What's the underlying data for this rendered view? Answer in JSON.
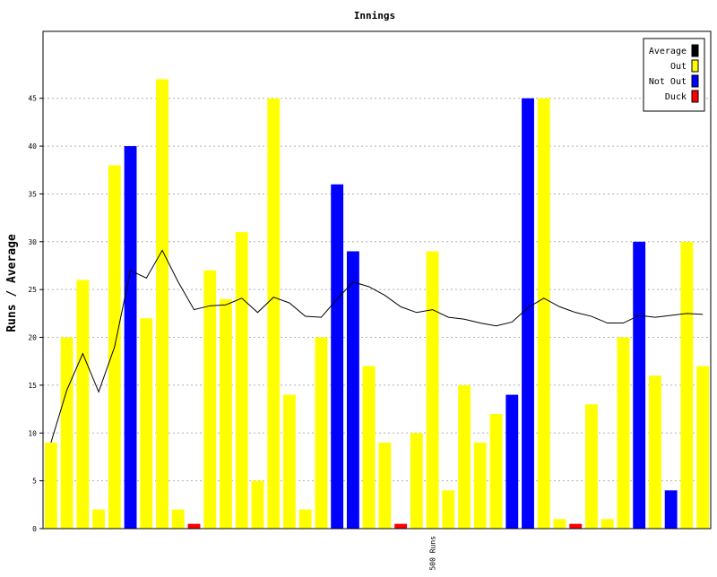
{
  "chart_data": {
    "type": "bar",
    "title": "Innings",
    "xlabel": "",
    "ylabel": "Runs / Average",
    "ylim": [
      0,
      52
    ],
    "yticks": [
      0,
      5,
      10,
      15,
      20,
      25,
      30,
      35,
      40,
      45
    ],
    "grid": true,
    "legend_position": "top-right",
    "x_annotation": "500 Runs",
    "x_annotation_after_innings": 24,
    "legend": [
      {
        "label": "Average",
        "color": "#000000"
      },
      {
        "label": "Out",
        "color": "#ffff00"
      },
      {
        "label": "Not Out",
        "color": "#0000ff"
      },
      {
        "label": "Duck",
        "color": "#ff0000"
      }
    ],
    "series": [
      {
        "name": "Runs",
        "type": "bar",
        "values": [
          9,
          20,
          26,
          2,
          38,
          40,
          22,
          47,
          2,
          0.5,
          27,
          24,
          31,
          5,
          45,
          14,
          2,
          20,
          36,
          29,
          17,
          9,
          0.5,
          10,
          29,
          4,
          15,
          9,
          12,
          14,
          45,
          45,
          1,
          0.5,
          13,
          1,
          20,
          30,
          16,
          4,
          30,
          17
        ],
        "status": [
          "Out",
          "Out",
          "Out",
          "Out",
          "Out",
          "Not Out",
          "Out",
          "Out",
          "Out",
          "Duck",
          "Out",
          "Out",
          "Out",
          "Out",
          "Out",
          "Out",
          "Out",
          "Out",
          "Not Out",
          "Not Out",
          "Out",
          "Out",
          "Duck",
          "Out",
          "Out",
          "Out",
          "Out",
          "Out",
          "Out",
          "Not Out",
          "Not Out",
          "Out",
          "Out",
          "Duck",
          "Out",
          "Out",
          "Out",
          "Not Out",
          "Out",
          "Not Out",
          "Out",
          "Out"
        ]
      },
      {
        "name": "Average",
        "type": "line",
        "values": [
          9,
          14.5,
          18.3,
          14.3,
          19.0,
          27.0,
          26.2,
          29.1,
          25.8,
          22.9,
          23.3,
          23.4,
          24.1,
          22.6,
          24.2,
          23.6,
          22.2,
          22.1,
          24.0,
          25.8,
          25.3,
          24.4,
          23.2,
          22.6,
          22.9,
          22.1,
          21.9,
          21.5,
          21.2,
          21.6,
          23.1,
          24.1,
          23.2,
          22.6,
          22.2,
          21.5,
          21.5,
          22.3,
          22.1,
          22.3,
          22.5,
          22.4
        ]
      }
    ]
  }
}
